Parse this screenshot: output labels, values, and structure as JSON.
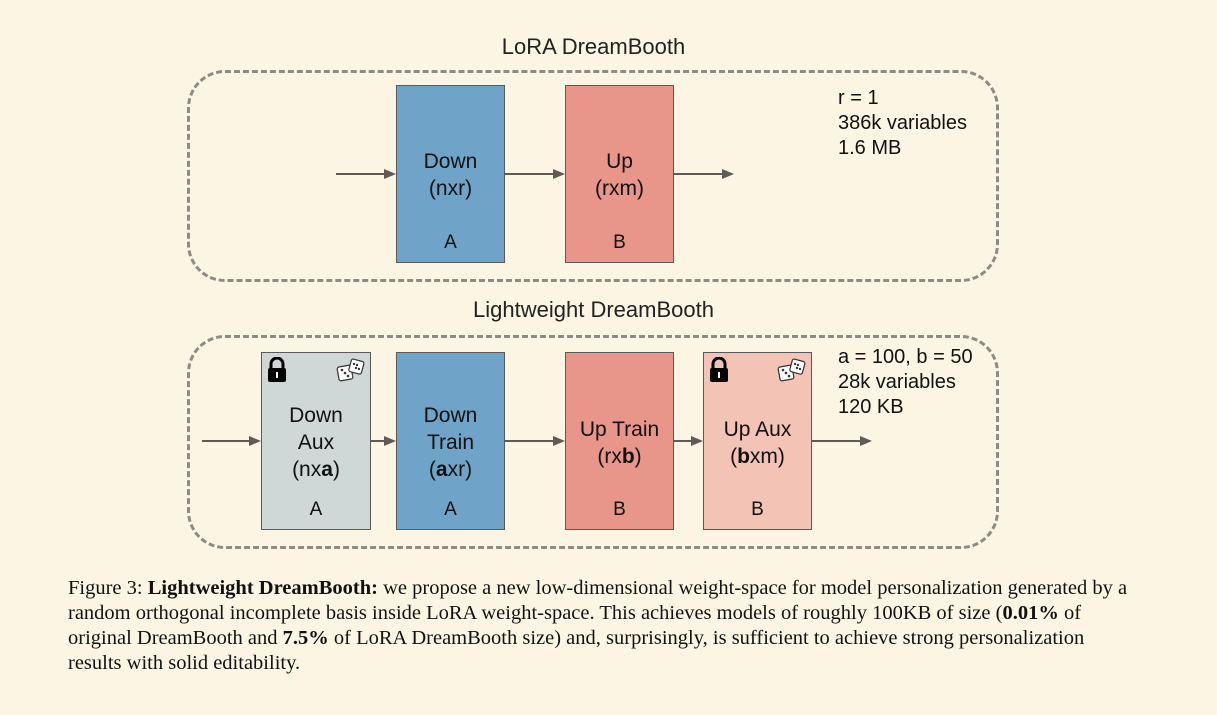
{
  "top": {
    "title": "LoRA DreamBooth",
    "blocks": [
      {
        "name": "Down",
        "dims": "(nxr)",
        "letter": "A"
      },
      {
        "name": "Up",
        "dims": "(rxm)",
        "letter": "B"
      }
    ],
    "info": [
      "r = 1",
      "386k variables",
      "1.6 MB"
    ]
  },
  "bottom": {
    "title": "Lightweight DreamBooth",
    "blocks": [
      {
        "line1": "Down",
        "line2": "Aux",
        "dims_pre": "(nx",
        "dims_bold": "a",
        "dims_post": ")",
        "letter": "A"
      },
      {
        "line1": "Down",
        "line2": "Train",
        "dims_pre": "(",
        "dims_bold": "a",
        "dims_post": "xr)",
        "letter": "A"
      },
      {
        "line1": "Up Train",
        "dims_pre": "(rx",
        "dims_bold": "b",
        "dims_post": ")",
        "letter": "B"
      },
      {
        "line1": "Up Aux",
        "dims_pre": "(",
        "dims_bold": "b",
        "dims_post": "xm)",
        "letter": "B"
      }
    ],
    "info": [
      "a = 100, b = 50",
      "28k variables",
      "120 KB"
    ]
  },
  "caption": {
    "label": "Figure 3:",
    "bold_title": "Lightweight DreamBooth:",
    "text1": "we propose a new low-dimensional weight-space for model personalization generated by a random orthogonal incomplete basis inside LoRA weight-space. This achieves models of roughly 100KB of size (",
    "pct1": "0.01%",
    "text2": "of original DreamBooth and",
    "pct2": "7.5%",
    "text3": "of LoRA DreamBooth size) and, surprisingly, is sufficient to achieve strong personalization results with solid editability."
  },
  "icons": {
    "lock": "lock-icon",
    "dice": "dice-icon"
  }
}
